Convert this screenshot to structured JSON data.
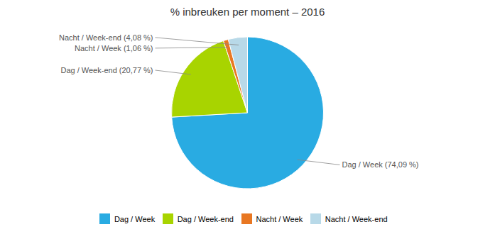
{
  "chart_data": {
    "type": "pie",
    "title": "% inbreuken per moment – 2016",
    "categories": [
      "Dag / Week",
      "Dag / Week-end",
      "Nacht / Week",
      "Nacht / Week-end"
    ],
    "values": [
      74.09,
      20.77,
      1.06,
      4.08
    ],
    "value_labels": [
      "Dag / Week (74,09 %)",
      "Dag / Week-end (20,77 %)",
      "Nacht / Week (1,06 %)",
      "Nacht / Week-end (4,08 %)"
    ],
    "colors": [
      "#29ABE2",
      "#A8D400",
      "#E87722",
      "#B8D9E8"
    ],
    "data_labels": true,
    "legend": "bottom"
  }
}
